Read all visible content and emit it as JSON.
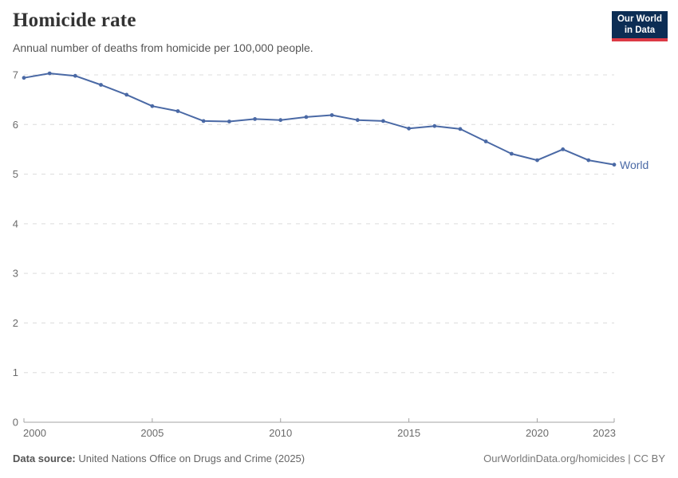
{
  "header": {
    "title": "Homicide rate",
    "subtitle": "Annual number of deaths from homicide per 100,000 people.",
    "logo": {
      "line1": "Our World",
      "line2": "in Data",
      "bg_color": "#0c2d54",
      "accent_color": "#dc3a45"
    }
  },
  "chart_data": {
    "type": "line",
    "title": "Homicide rate",
    "x": [
      2000,
      2001,
      2002,
      2003,
      2004,
      2005,
      2006,
      2007,
      2008,
      2009,
      2010,
      2011,
      2012,
      2013,
      2014,
      2015,
      2016,
      2017,
      2018,
      2019,
      2020,
      2021,
      2022,
      2023
    ],
    "series": [
      {
        "name": "World",
        "color": "#4a69a5",
        "values": [
          6.94,
          7.03,
          6.98,
          6.8,
          6.6,
          6.37,
          6.27,
          6.07,
          6.06,
          6.11,
          6.09,
          6.15,
          6.19,
          6.09,
          6.07,
          5.92,
          5.97,
          5.91,
          5.66,
          5.41,
          5.28,
          5.5,
          5.28,
          5.19
        ]
      }
    ],
    "ylim": [
      0,
      7
    ],
    "yticks": [
      0,
      1,
      2,
      3,
      4,
      5,
      6,
      7
    ],
    "xticks": [
      2000,
      2005,
      2010,
      2015,
      2020,
      2023
    ],
    "xlabel": "",
    "ylabel": "",
    "grid": "horizontal-dashed",
    "gridline_color": "#dcdcdc",
    "axis_color": "#a3a3a3",
    "legend_position": "line-end"
  },
  "footer": {
    "source_label": "Data source:",
    "source_text": "United Nations Office on Drugs and Crime (2025)",
    "right_text": "OurWorldinData.org/homicides | CC BY"
  }
}
